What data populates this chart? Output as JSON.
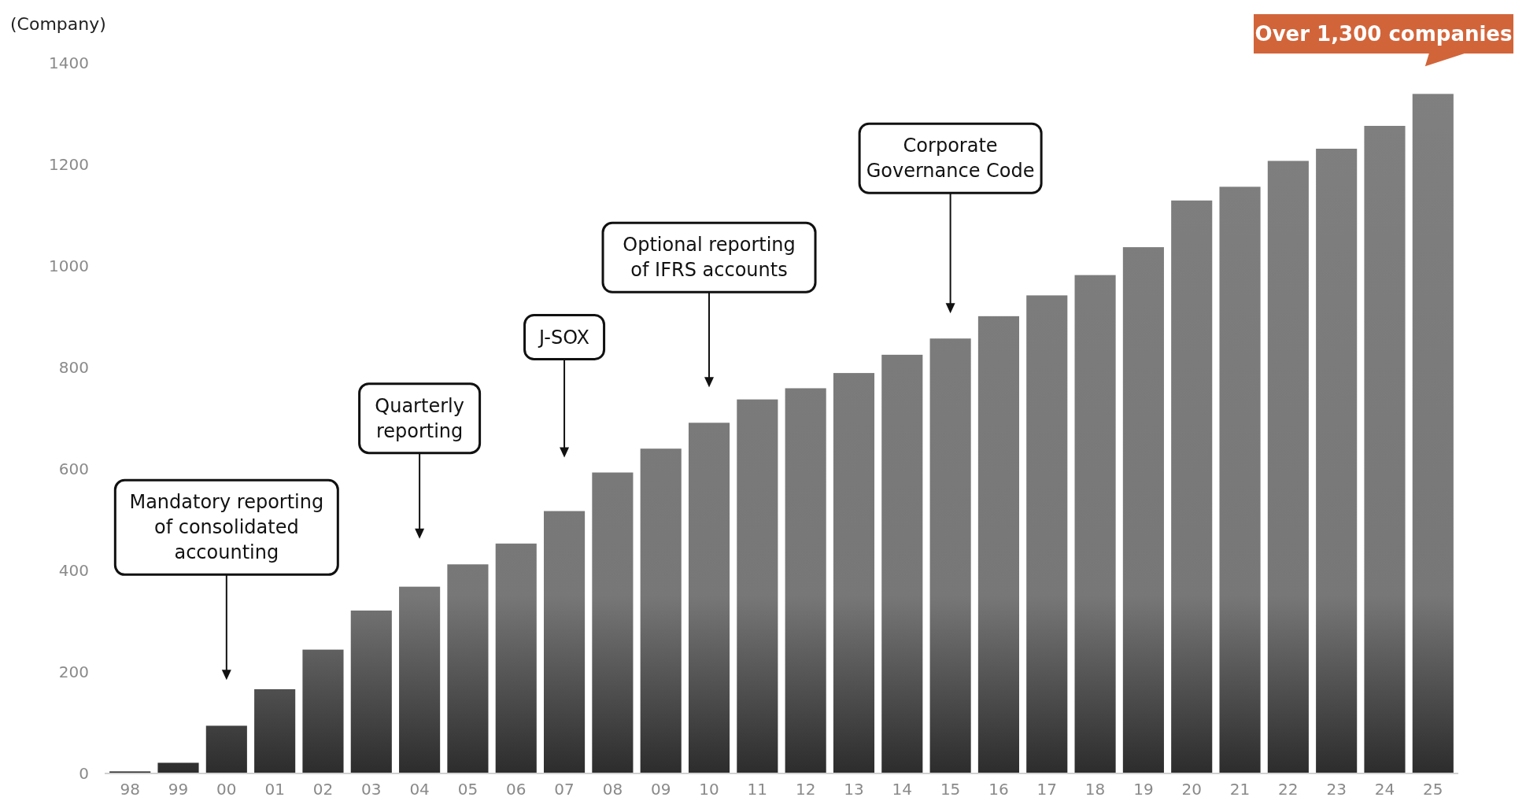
{
  "chart_data": {
    "type": "bar",
    "ylabel": "(Company)",
    "categories": [
      "98",
      "99",
      "00",
      "01",
      "02",
      "03",
      "04",
      "05",
      "06",
      "07",
      "08",
      "09",
      "10",
      "11",
      "12",
      "13",
      "14",
      "15",
      "16",
      "17",
      "18",
      "19",
      "20",
      "21",
      "22",
      "23",
      "24",
      "25"
    ],
    "values": [
      4,
      21,
      94,
      166,
      244,
      321,
      368,
      412,
      453,
      517,
      593,
      640,
      691,
      737,
      759,
      789,
      825,
      857,
      901,
      942,
      982,
      1037,
      1129,
      1156,
      1207,
      1231,
      1276,
      1339
    ],
    "color": "#808080",
    "ylim": [
      0,
      1400
    ],
    "yticks": [
      0,
      200,
      400,
      600,
      800,
      1000,
      1200,
      1400
    ],
    "grid": false,
    "annotations": [
      "Mandatory reporting\nof consolidated\naccounting",
      "Quarterly\nreporting",
      "J-SOX",
      "Optional reporting\nof IFRS accounts",
      "Corporate\nGovernance Code",
      "Over 1,300 companies"
    ]
  }
}
